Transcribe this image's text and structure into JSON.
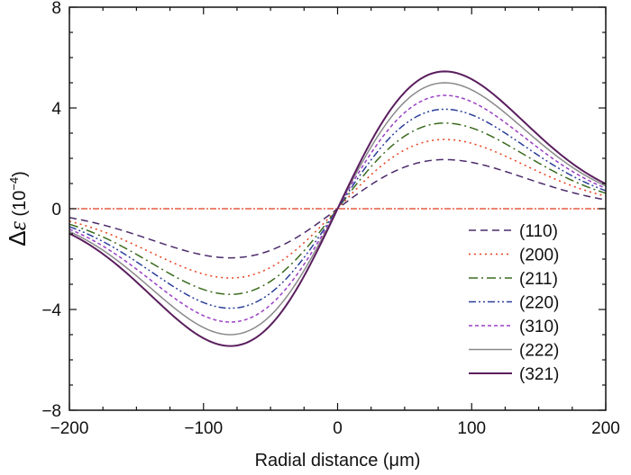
{
  "chart_data": {
    "type": "line",
    "title": "",
    "xlabel": "Radial distance (μm)",
    "ylabel": "Δε (10⁻⁴)",
    "ylabel_parts": {
      "main": "Δ",
      "epsilon": "ε",
      "unit_open": " (10",
      "unit_sup": "−4",
      "unit_close": ")"
    },
    "xlim": [
      -200,
      200
    ],
    "ylim": [
      -8,
      8
    ],
    "xticks": [
      -200,
      -100,
      0,
      100,
      200
    ],
    "xtick_labels": [
      "−200",
      "−100",
      "0",
      "100",
      "200"
    ],
    "yticks": [
      -8,
      -4,
      0,
      4,
      8
    ],
    "ytick_labels": [
      "−8",
      "−4",
      "0",
      "4",
      "8"
    ],
    "grid": false,
    "legend_position": "bottom-right",
    "curve_model": "A * (x/80) * exp((1 - (x/80)^2)/2)",
    "peak_position_um": 80,
    "zero_line": {
      "y": 0,
      "color": "#e03c1e"
    },
    "series": [
      {
        "name": "(110)",
        "amplitude": 1.95,
        "color": "#4b2a6b",
        "dash": "8,5"
      },
      {
        "name": "(200)",
        "amplitude": 2.75,
        "color": "#e8401c",
        "dash": "2,4"
      },
      {
        "name": "(211)",
        "amplitude": 3.4,
        "color": "#3a6b1e",
        "dash": "10,4,2,4"
      },
      {
        "name": "(220)",
        "amplitude": 3.95,
        "color": "#2b3f99",
        "dash": "8,3,2,3,2,3"
      },
      {
        "name": "(310)",
        "amplitude": 4.5,
        "color": "#9a3fc4",
        "dash": "4,3"
      },
      {
        "name": "(222)",
        "amplitude": 5.0,
        "color": "#8a8a8a",
        "dash": ""
      },
      {
        "name": "(321)",
        "amplitude": 5.45,
        "color": "#5a1e5e",
        "dash": ""
      }
    ]
  }
}
